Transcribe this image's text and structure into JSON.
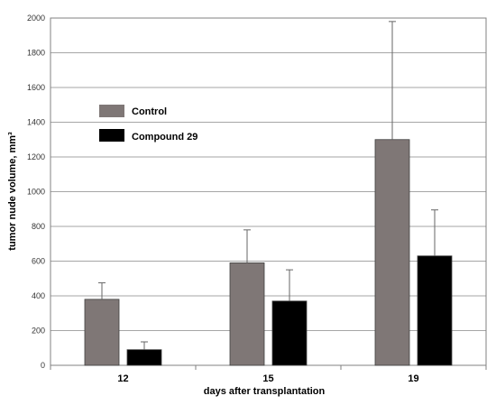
{
  "chart_data": {
    "type": "bar",
    "categories": [
      "12",
      "15",
      "19"
    ],
    "series": [
      {
        "name": "Control",
        "values": [
          380,
          590,
          1300
        ],
        "errors": [
          95,
          190,
          680
        ]
      },
      {
        "name": "Compound 29",
        "values": [
          90,
          370,
          630
        ],
        "errors": [
          45,
          180,
          265
        ]
      }
    ],
    "xlabel": "days after transplantation",
    "ylabel": "tumor nude volume, mm³",
    "ylim": [
      0,
      2000
    ],
    "yticks": [
      "0",
      "200",
      "400",
      "600",
      "800",
      "1000",
      "1200",
      "1400",
      "1600",
      "1800",
      "2000"
    ],
    "grid": true,
    "legend_position": "upper-left",
    "colors": {
      "Control": "#7f7776",
      "Compound 29": "#000000"
    }
  }
}
